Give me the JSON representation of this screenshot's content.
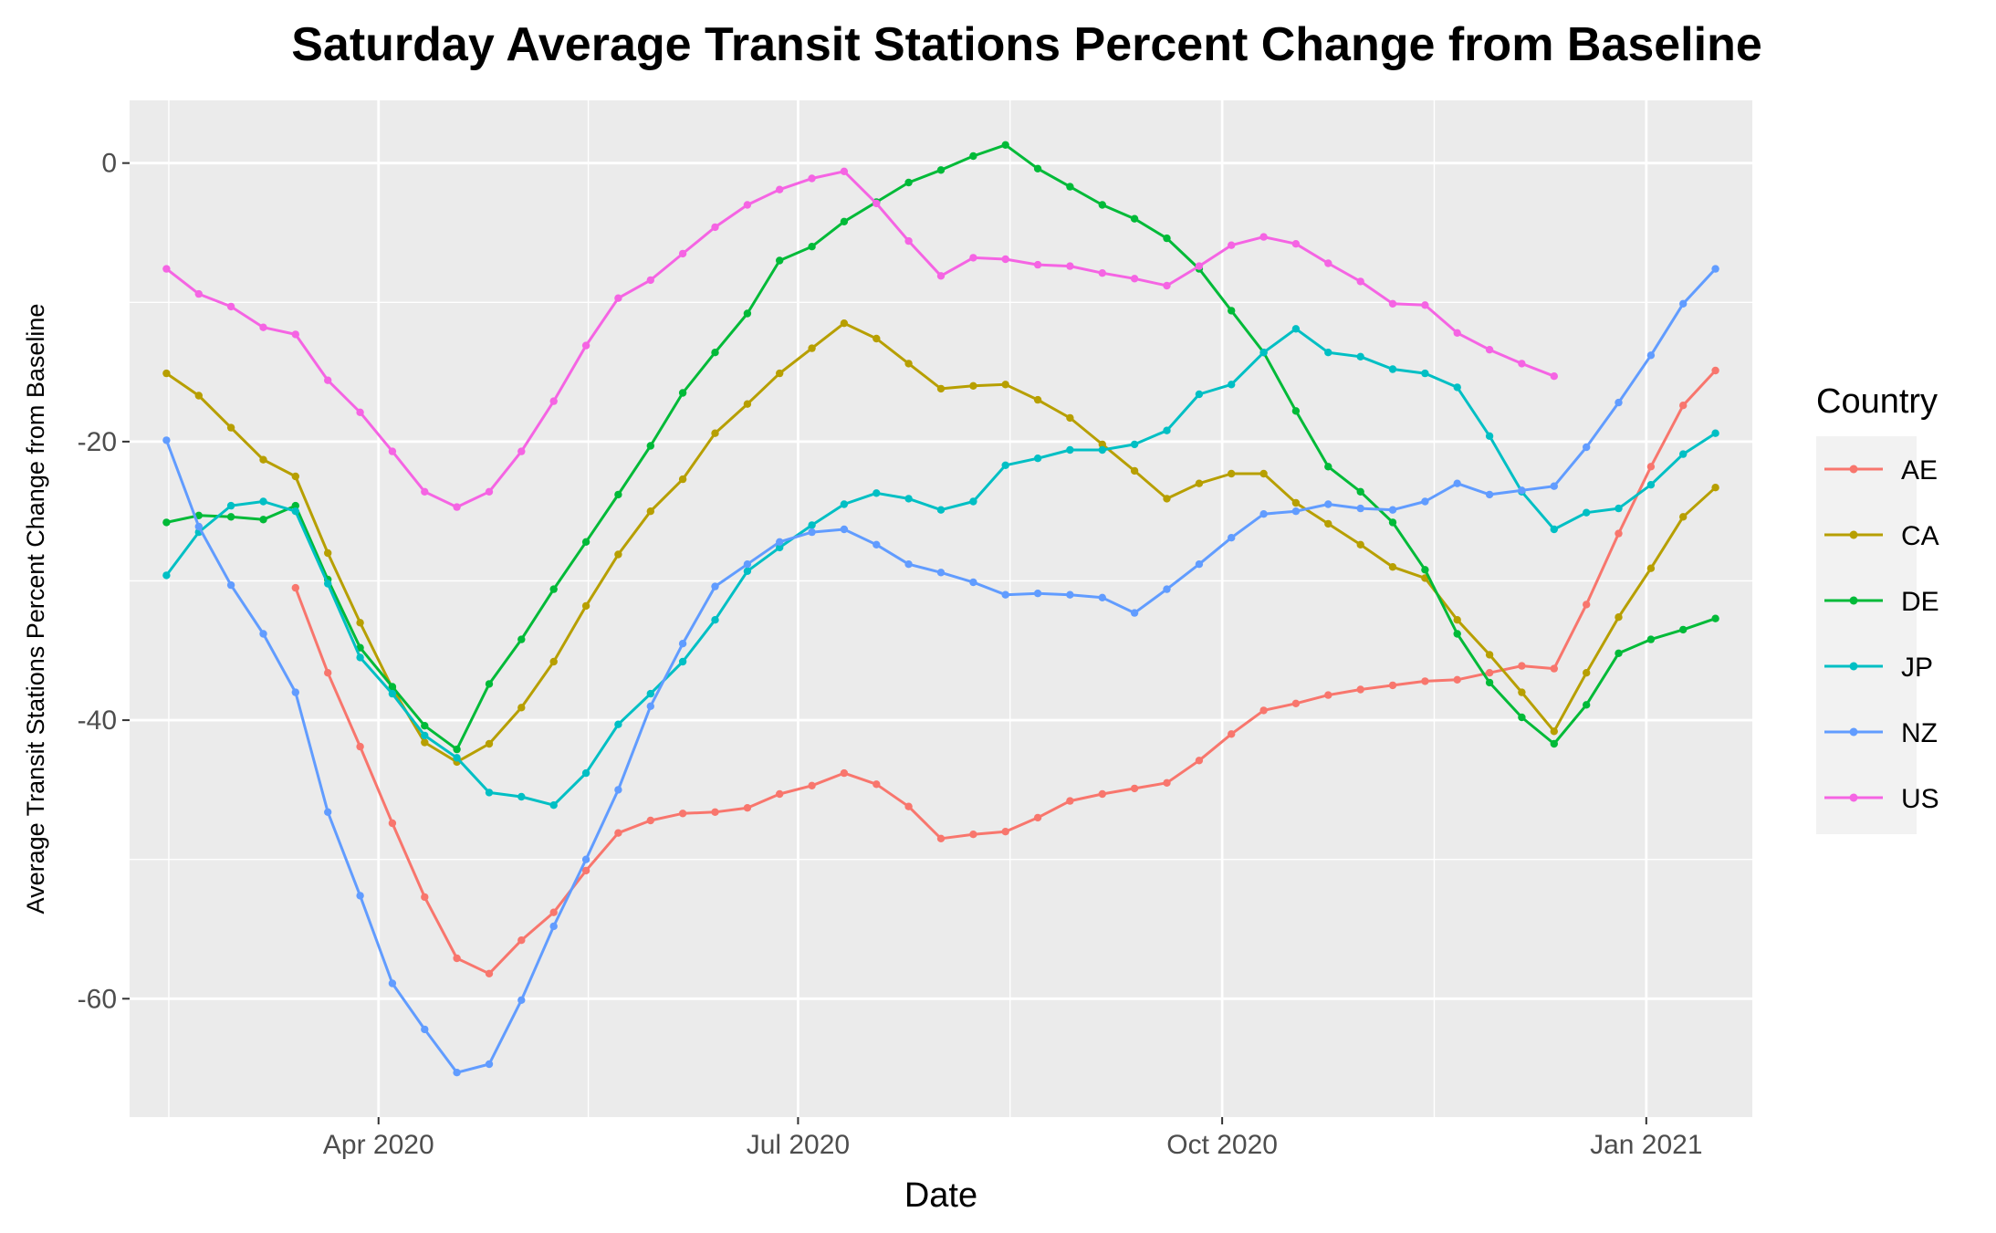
{
  "chart_data": {
    "type": "line",
    "title": "Saturday Average Transit Stations Percent Change from Baseline",
    "xlabel": "Date",
    "ylabel": "Average Transit Stations Percent Change from Baseline",
    "x_start": "2020-02-15",
    "x_step_days": 7,
    "xlim_days": [
      -8,
      344
    ],
    "ylim": [
      -68.5,
      4.5
    ],
    "x_ticks": [
      {
        "label": "Apr 2020",
        "day": 46
      },
      {
        "label": "Jul 2020",
        "day": 137
      },
      {
        "label": "Oct 2020",
        "day": 229
      },
      {
        "label": "Jan 2021",
        "day": 321
      }
    ],
    "x_minor_days": [
      0.5,
      91.5,
      183,
      275
    ],
    "y_ticks": [
      0,
      -20,
      -40,
      -60
    ],
    "y_minor": [
      -10,
      -30,
      -50
    ],
    "grid": true,
    "legend": {
      "title": "Country",
      "position": "right"
    },
    "series": [
      {
        "name": "AE",
        "color": "#F8766D",
        "start_index": 4,
        "values": [
          -30.5,
          -36.6,
          -41.9,
          -47.4,
          -52.7,
          -57.1,
          -58.2,
          -55.8,
          -53.8,
          -50.8,
          -48.1,
          -47.2,
          -46.7,
          -46.6,
          -46.3,
          -45.3,
          -44.7,
          -43.8,
          -44.6,
          -46.2,
          -48.5,
          -48.2,
          -48.0,
          -47.0,
          -45.8,
          -45.3,
          -44.9,
          -44.5,
          -42.9,
          -41.0,
          -39.3,
          -38.8,
          -38.2,
          -37.8,
          -37.5,
          -37.2,
          -37.1,
          -36.6,
          -36.1,
          -36.3,
          -31.7,
          -26.6,
          -21.8,
          -17.4,
          -14.9
        ]
      },
      {
        "name": "CA",
        "color": "#B79F00",
        "start_index": 0,
        "values": [
          -15.1,
          -16.7,
          -19.0,
          -21.3,
          -22.5,
          -28.0,
          -33.0,
          -37.7,
          -41.6,
          -43.0,
          -41.7,
          -39.1,
          -35.8,
          -31.8,
          -28.1,
          -25.0,
          -22.7,
          -19.4,
          -17.3,
          -15.1,
          -13.3,
          -11.5,
          -12.6,
          -14.4,
          -16.2,
          -16.0,
          -15.9,
          -17.0,
          -18.3,
          -20.2,
          -22.1,
          -24.1,
          -23.0,
          -22.3,
          -22.3,
          -24.4,
          -25.9,
          -27.4,
          -29.0,
          -29.8,
          -32.8,
          -35.3,
          -38.0,
          -40.8,
          -36.6,
          -32.6,
          -29.1,
          -25.4,
          -23.3
        ]
      },
      {
        "name": "DE",
        "color": "#00BA38",
        "start_index": 0,
        "values": [
          -25.8,
          -25.3,
          -25.4,
          -25.6,
          -24.6,
          -29.9,
          -34.8,
          -37.6,
          -40.4,
          -42.1,
          -37.4,
          -34.2,
          -30.6,
          -27.2,
          -23.8,
          -20.3,
          -16.5,
          -13.6,
          -10.8,
          -7.0,
          -6.0,
          -4.2,
          -2.8,
          -1.4,
          -0.5,
          0.5,
          1.3,
          -0.4,
          -1.7,
          -3.0,
          -4.0,
          -5.4,
          -7.6,
          -10.6,
          -13.6,
          -17.8,
          -21.8,
          -23.6,
          -25.8,
          -29.2,
          -33.8,
          -37.3,
          -39.8,
          -41.7,
          -38.9,
          -35.2,
          -34.2,
          -33.5,
          -32.7
        ]
      },
      {
        "name": "JP",
        "color": "#00BFC4",
        "start_index": 0,
        "values": [
          -29.6,
          -26.5,
          -24.6,
          -24.3,
          -25.0,
          -30.2,
          -35.5,
          -38.1,
          -41.1,
          -42.7,
          -45.2,
          -45.5,
          -46.1,
          -43.8,
          -40.3,
          -38.1,
          -35.8,
          -32.8,
          -29.3,
          -27.6,
          -26.0,
          -24.5,
          -23.7,
          -24.1,
          -24.9,
          -24.3,
          -21.7,
          -21.2,
          -20.6,
          -20.6,
          -20.2,
          -19.2,
          -16.6,
          -15.9,
          -13.6,
          -11.9,
          -13.6,
          -13.9,
          -14.8,
          -15.1,
          -16.1,
          -19.6,
          -23.6,
          -26.3,
          -25.1,
          -24.8,
          -23.1,
          -20.9,
          -19.4
        ]
      },
      {
        "name": "NZ",
        "color": "#619CFF",
        "start_index": 0,
        "values": [
          -19.9,
          -26.1,
          -30.3,
          -33.8,
          -38.0,
          -46.6,
          -52.6,
          -58.9,
          -62.2,
          -65.3,
          -64.7,
          -60.1,
          -54.8,
          -50.0,
          -45.0,
          -39.0,
          -34.5,
          -30.4,
          -28.8,
          -27.2,
          -26.5,
          -26.3,
          -27.4,
          -28.8,
          -29.4,
          -30.1,
          -31.0,
          -30.9,
          -31.0,
          -31.2,
          -32.3,
          -30.6,
          -28.8,
          -26.9,
          -25.2,
          -25.0,
          -24.5,
          -24.8,
          -24.9,
          -24.3,
          -23.0,
          -23.8,
          -23.5,
          -23.2,
          -20.4,
          -17.2,
          -13.8,
          -10.1,
          -7.6
        ]
      },
      {
        "name": "US",
        "color": "#F564E3",
        "start_index": 0,
        "values": [
          -7.6,
          -9.4,
          -10.3,
          -11.8,
          -12.3,
          -15.6,
          -17.9,
          -20.7,
          -23.6,
          -24.7,
          -23.6,
          -20.7,
          -17.1,
          -13.1,
          -9.7,
          -8.4,
          -6.5,
          -4.6,
          -3.0,
          -1.9,
          -1.1,
          -0.6,
          -2.9,
          -5.6,
          -8.1,
          -6.8,
          -6.9,
          -7.3,
          -7.4,
          -7.9,
          -8.3,
          -8.8,
          -7.4,
          -5.9,
          -5.3,
          -5.8,
          -7.2,
          -8.5,
          -10.1,
          -10.2,
          -12.2,
          -13.4,
          -14.4,
          -15.3
        ]
      }
    ]
  }
}
